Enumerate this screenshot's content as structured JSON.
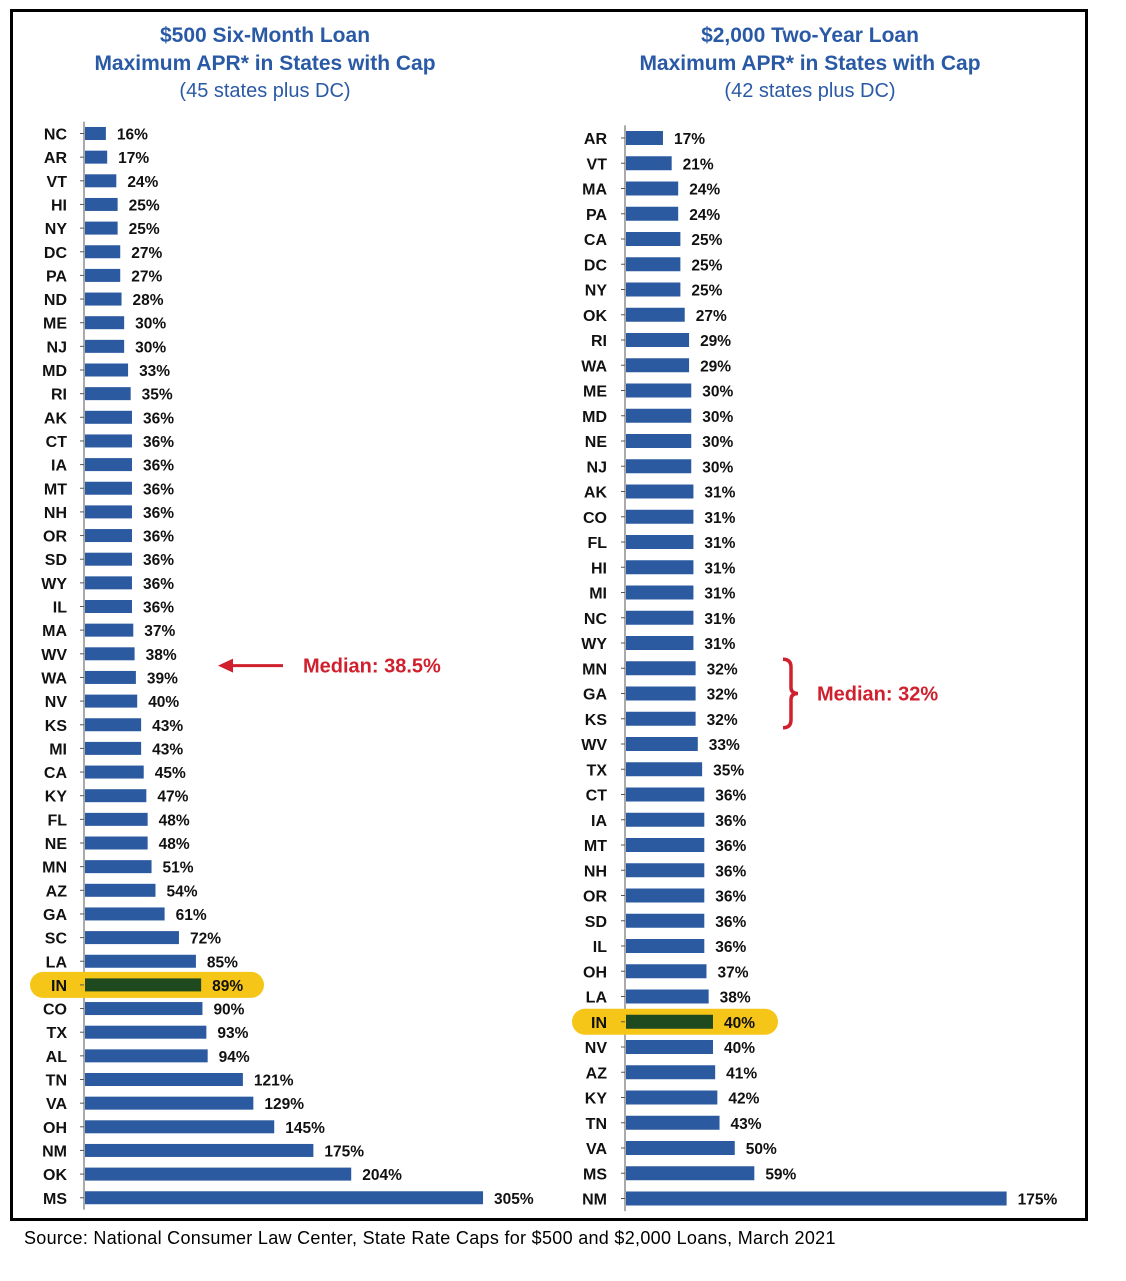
{
  "colors": {
    "bar": "#2c5aa0",
    "indiana_bar": "#1f4a1f",
    "indiana_highlight": "#f5c518",
    "median_annotation": "#d0202e",
    "title": "#2a5aa6"
  },
  "charts": {
    "left": {
      "title": "$500 Six-Month Loan",
      "title2": "Maximum APR* in States with Cap",
      "subtitle": "(45 states plus DC)",
      "median_label": "Median: 38.5%"
    },
    "right": {
      "title": "$2,000 Two-Year Loan",
      "title2": "Maximum APR* in States with Cap",
      "subtitle": "(42 states plus DC)",
      "median_label": "Median: 32%"
    }
  },
  "source": "Source: National Consumer Law Center, State Rate Caps for $500 and $2,000 Loans, March 2021",
  "chart_data": [
    {
      "type": "bar",
      "orientation": "horizontal",
      "title": "$500 Six-Month Loan Maximum APR* in States with Cap",
      "subtitle": "(45 states plus DC)",
      "categories": [
        "NC",
        "AR",
        "VT",
        "HI",
        "NY",
        "DC",
        "PA",
        "ND",
        "ME",
        "NJ",
        "MD",
        "RI",
        "AK",
        "CT",
        "IA",
        "MT",
        "NH",
        "OR",
        "SD",
        "WY",
        "IL",
        "MA",
        "WV",
        "WA",
        "NV",
        "KS",
        "MI",
        "CA",
        "KY",
        "FL",
        "NE",
        "MN",
        "AZ",
        "GA",
        "SC",
        "LA",
        "IN",
        "CO",
        "TX",
        "AL",
        "TN",
        "VA",
        "OH",
        "NM",
        "OK",
        "MS"
      ],
      "values": [
        16,
        17,
        24,
        25,
        25,
        27,
        27,
        28,
        30,
        30,
        33,
        35,
        36,
        36,
        36,
        36,
        36,
        36,
        36,
        36,
        36,
        37,
        38,
        39,
        40,
        43,
        43,
        45,
        47,
        48,
        48,
        51,
        54,
        61,
        72,
        85,
        89,
        90,
        93,
        94,
        121,
        129,
        145,
        175,
        204,
        305
      ],
      "value_suffix": "%",
      "highlight": "IN",
      "annotation": "Median: 38.5%",
      "median_between": [
        "WV",
        "WA"
      ]
    },
    {
      "type": "bar",
      "orientation": "horizontal",
      "title": "$2,000 Two-Year Loan Maximum APR* in States with Cap",
      "subtitle": "(42 states plus DC)",
      "categories": [
        "AR",
        "VT",
        "MA",
        "PA",
        "CA",
        "DC",
        "NY",
        "OK",
        "RI",
        "WA",
        "ME",
        "MD",
        "NE",
        "NJ",
        "AK",
        "CO",
        "FL",
        "HI",
        "MI",
        "NC",
        "WY",
        "MN",
        "GA",
        "KS",
        "WV",
        "TX",
        "CT",
        "IA",
        "MT",
        "NH",
        "OR",
        "SD",
        "IL",
        "OH",
        "LA",
        "IN",
        "NV",
        "AZ",
        "KY",
        "TN",
        "VA",
        "MS",
        "NM"
      ],
      "values": [
        17,
        21,
        24,
        24,
        25,
        25,
        25,
        27,
        29,
        29,
        30,
        30,
        30,
        30,
        31,
        31,
        31,
        31,
        31,
        31,
        31,
        32,
        32,
        32,
        33,
        35,
        36,
        36,
        36,
        36,
        36,
        36,
        36,
        37,
        38,
        40,
        40,
        41,
        42,
        43,
        50,
        59,
        175
      ],
      "value_suffix": "%",
      "highlight": "IN",
      "annotation": "Median: 32%",
      "median_bracket": [
        "MN",
        "KS"
      ]
    }
  ]
}
